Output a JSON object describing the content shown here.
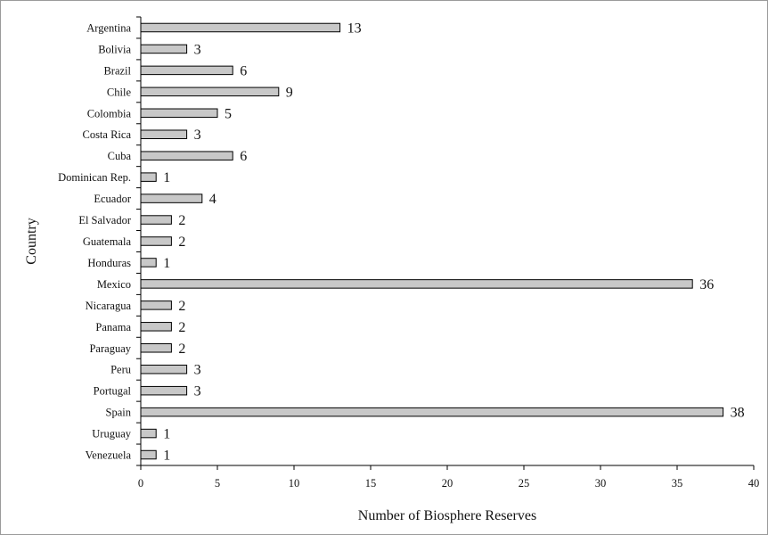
{
  "chart_data": {
    "type": "bar",
    "orientation": "horizontal",
    "title": "",
    "xlabel": "Number of Biosphere Reserves",
    "ylabel": "Country",
    "xlim": [
      0,
      40
    ],
    "xticks": [
      "0",
      "5",
      "10",
      "15",
      "20",
      "25",
      "30",
      "35",
      "40"
    ],
    "grid": false,
    "legend": "none",
    "bar_color": "#c8c8c8",
    "bar_edge_color": "#000000",
    "categories": [
      "Argentina",
      "Bolivia",
      "Brazil",
      "Chile",
      "Colombia",
      "Costa Rica",
      "Cuba",
      "Dominican Rep.",
      "Ecuador",
      "El Salvador",
      "Guatemala",
      "Honduras",
      "Mexico",
      "Nicaragua",
      "Panama",
      "Paraguay",
      "Peru",
      "Portugal",
      "Spain",
      "Uruguay",
      "Venezuela"
    ],
    "values": [
      13,
      3,
      6,
      9,
      5,
      3,
      6,
      1,
      4,
      2,
      2,
      1,
      36,
      2,
      2,
      2,
      3,
      3,
      38,
      1,
      1
    ]
  }
}
